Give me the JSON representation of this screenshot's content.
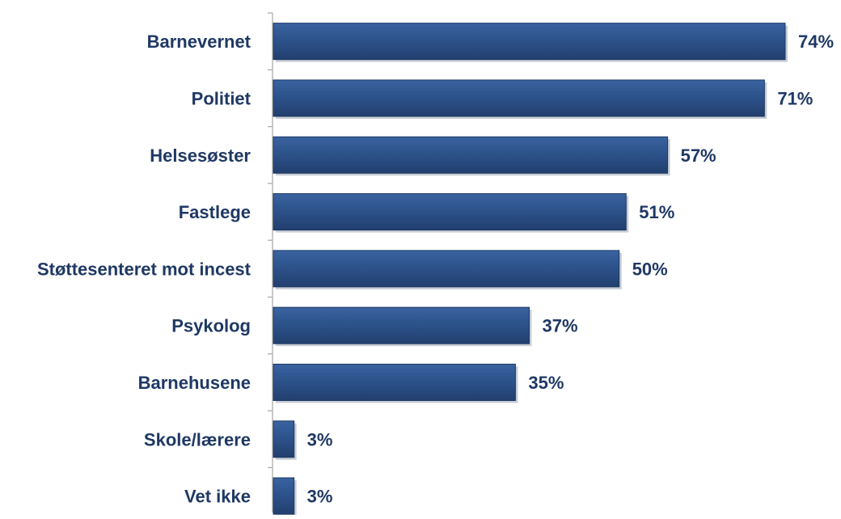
{
  "chart_data": {
    "type": "bar",
    "orientation": "horizontal",
    "categories": [
      "Barnevernet",
      "Politiet",
      "Helsesøster",
      "Fastlege",
      "Støttesenteret mot incest",
      "Psykolog",
      "Barnehusene",
      "Skole/lærere",
      "Vet ikke"
    ],
    "values": [
      74,
      71,
      57,
      51,
      50,
      37,
      35,
      3,
      3
    ],
    "value_labels": [
      "74%",
      "71%",
      "57%",
      "51%",
      "50%",
      "37%",
      "35%",
      "3%",
      "3%"
    ],
    "unit": "%",
    "xlim": [
      0,
      100
    ],
    "title": "",
    "xlabel": "",
    "ylabel": "",
    "grid": false,
    "legend": "none",
    "colors": {
      "bar_fill": "#2c5189",
      "bar_edge": "#1b3863",
      "bar_shadow": "#9aa4b2",
      "label_text": "#1f3864",
      "axis": "#a6a6a6"
    }
  }
}
